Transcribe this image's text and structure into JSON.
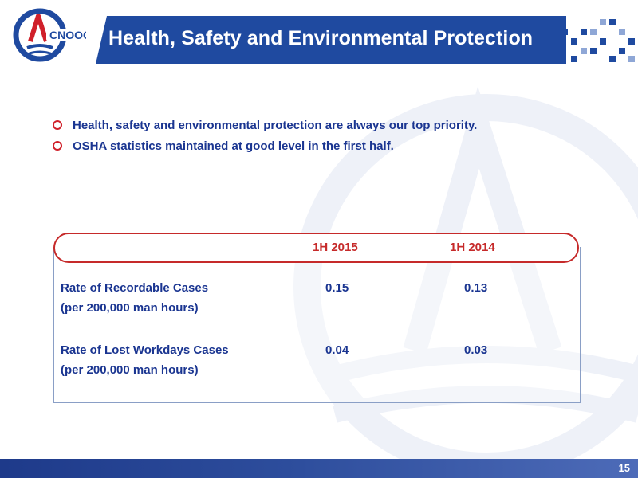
{
  "header": {
    "title": "Health, Safety and Environmental Protection",
    "logo_text": "CNOOC",
    "logo_icon": "cnooc-logo-icon"
  },
  "bullets": [
    "Health, safety and environmental protection are always our top priority.",
    "OSHA statistics maintained at good level in the first half."
  ],
  "table": {
    "columns": [
      "1H 2015",
      "1H 2014"
    ],
    "rows": [
      {
        "label": "Rate of Recordable Cases",
        "sublabel": "(per 200,000 man hours)",
        "values": [
          "0.15",
          "0.13"
        ]
      },
      {
        "label": "Rate of Lost Workdays Cases",
        "sublabel": "(per 200,000 man hours)",
        "values": [
          "0.04",
          "0.03"
        ]
      }
    ]
  },
  "footer": {
    "page_number": "15"
  },
  "colors": {
    "primary_blue": "#1f4aa0",
    "text_blue": "#1a3591",
    "accent_red": "#c62a2a"
  }
}
